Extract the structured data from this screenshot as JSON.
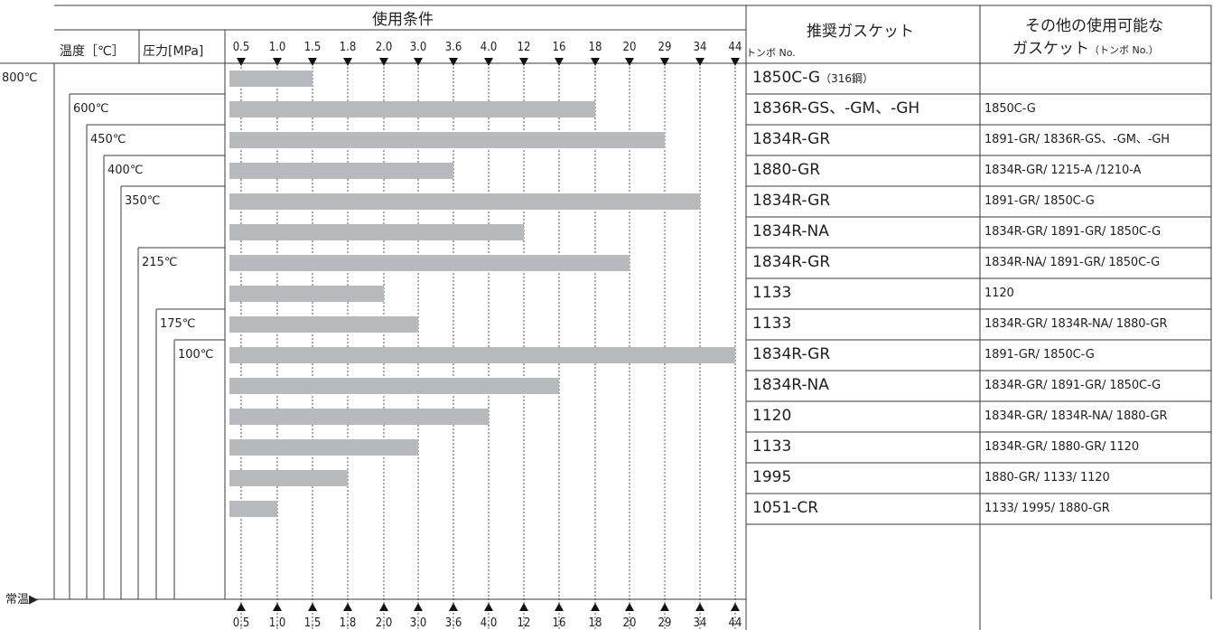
{
  "header": {
    "conditions": "使用条件",
    "temp_label": "温度［℃］",
    "pressure_label": "圧力[MPa]",
    "recommended_title": "推奨ガスケット",
    "recommended_sub": "トンボ No.",
    "other_title_line1": "その他の使用可能な",
    "other_title_line2": "ガスケット",
    "other_title_sub": "（トンボ No.）"
  },
  "ambient_label": "常温▶",
  "temperatures": [
    "800℃",
    "600℃",
    "450℃",
    "400℃",
    "350℃",
    "215℃",
    "175℃",
    "100℃"
  ],
  "pressure_ticks": [
    "0.5",
    "1.0",
    "1.5",
    "1.8",
    "2.0",
    "3.0",
    "3.6",
    "4.0",
    "12",
    "16",
    "18",
    "20",
    "29",
    "34",
    "44"
  ],
  "chart_data": {
    "type": "bar",
    "orientation": "horizontal",
    "xlabel": "圧力[MPa]",
    "x_categories": [
      "0.5",
      "1.0",
      "1.5",
      "1.8",
      "2.0",
      "3.0",
      "3.6",
      "4.0",
      "12",
      "16",
      "18",
      "20",
      "29",
      "34",
      "44"
    ],
    "rows": [
      {
        "temp": "800℃",
        "max_pressure": 1.5,
        "recommended": "1850C-G",
        "recommended_note": "（316鋼）",
        "others": ""
      },
      {
        "temp": "600℃",
        "max_pressure": 18,
        "recommended": "1836R-GS、-GM、-GH",
        "recommended_note": "",
        "others": "1850C-G"
      },
      {
        "temp": "450℃",
        "max_pressure": 29,
        "recommended": "1834R-GR",
        "recommended_note": "",
        "others": "1891-GR/ 1836R-GS、-GM、-GH"
      },
      {
        "temp": "400℃",
        "max_pressure": 3.6,
        "recommended": "1880-GR",
        "recommended_note": "",
        "others": "1834R-GR/ 1215-A /1210-A"
      },
      {
        "temp": "350℃",
        "max_pressure": 34,
        "recommended": "1834R-GR",
        "recommended_note": "",
        "others": "1891-GR/ 1850C-G"
      },
      {
        "temp": "",
        "max_pressure": 12,
        "recommended": "1834R-NA",
        "recommended_note": "",
        "others": "1834R-GR/ 1891-GR/ 1850C-G"
      },
      {
        "temp": "215℃",
        "max_pressure": 20,
        "recommended": "1834R-GR",
        "recommended_note": "",
        "others": "1834R-NA/ 1891-GR/ 1850C-G"
      },
      {
        "temp": "",
        "max_pressure": 2.0,
        "recommended": "1133",
        "recommended_note": "",
        "others": "1120"
      },
      {
        "temp": "175℃",
        "max_pressure": 3.0,
        "recommended": "1133",
        "recommended_note": "",
        "others": "1834R-GR/ 1834R-NA/ 1880-GR"
      },
      {
        "temp": "100℃",
        "max_pressure": 44,
        "recommended": "1834R-GR",
        "recommended_note": "",
        "others": "1891-GR/ 1850C-G"
      },
      {
        "temp": "",
        "max_pressure": 16,
        "recommended": "1834R-NA",
        "recommended_note": "",
        "others": "1834R-GR/ 1891-GR/ 1850C-G"
      },
      {
        "temp": "",
        "max_pressure": 4.0,
        "recommended": "1120",
        "recommended_note": "",
        "others": "1834R-GR/ 1834R-NA/ 1880-GR"
      },
      {
        "temp": "",
        "max_pressure": 3.0,
        "recommended": "1133",
        "recommended_note": "",
        "others": "1834R-GR/ 1880-GR/ 1120"
      },
      {
        "temp": "",
        "max_pressure": 1.8,
        "recommended": "1995",
        "recommended_note": "",
        "others": "1880-GR/ 1133/ 1120"
      },
      {
        "temp": "",
        "max_pressure": 1.0,
        "recommended": "1051-CR",
        "recommended_note": "",
        "others": "1133/ 1995/ 1880-GR"
      }
    ],
    "bar_color": "#b8b9bd",
    "grid": "dotted vertical lines at each pressure tick"
  },
  "colors": {
    "line": "#3a3a3a",
    "bar": "#b8b9bd",
    "text": "#1e1e1e"
  }
}
